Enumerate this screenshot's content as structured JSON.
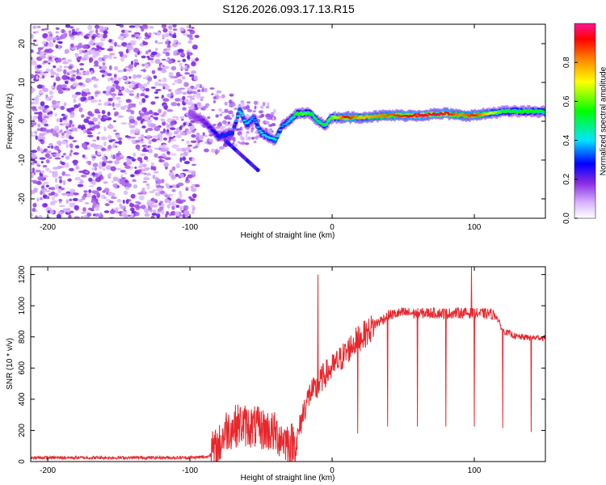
{
  "title": "S126.2026.093.17.13.R15",
  "colors": {
    "snr_line": "#e8262b",
    "axis": "#000000",
    "background": "#ffffff"
  },
  "chart_data": [
    {
      "type": "heatmap",
      "name": "spectrogram",
      "xlabel": "Height of straight line (km)",
      "ylabel": "Frequency (Hz)",
      "xlim": [
        -212,
        150
      ],
      "ylim": [
        -25,
        25
      ],
      "xticks": [
        -200,
        -100,
        0,
        100
      ],
      "xtick_labels": [
        "-200",
        "-100",
        "0",
        "100"
      ],
      "yticks": [
        -20,
        -10,
        0,
        10,
        20
      ],
      "ytick_labels": [
        "-20",
        "-10",
        "0",
        "10",
        "20"
      ],
      "colorbar": {
        "label": "Normalized spectral amplitude",
        "range": [
          0,
          1
        ],
        "ticks": [
          0,
          0.2,
          0.4,
          0.6,
          0.8
        ],
        "tick_labels": [
          "0.0",
          "0.2",
          "0.4",
          "0.6",
          "0.8"
        ]
      },
      "ridge": {
        "x": [
          -100,
          -90,
          -80,
          -70,
          -65,
          -60,
          -55,
          -50,
          -45,
          -40,
          -35,
          -30,
          -25,
          -20,
          -15,
          -10,
          -5,
          0,
          10,
          20,
          40,
          60,
          80,
          90,
          100,
          120,
          150
        ],
        "freq_hz": [
          2,
          0,
          -4,
          -3,
          3,
          -1,
          1,
          -3,
          -4,
          -5,
          -1,
          0,
          2,
          2,
          2,
          0,
          -1,
          1,
          1,
          1,
          1.5,
          1.5,
          2,
          1.5,
          1.5,
          2.5,
          2.5
        ],
        "amplitude": [
          0.15,
          0.2,
          0.3,
          0.3,
          0.45,
          0.4,
          0.35,
          0.4,
          0.4,
          0.45,
          0.35,
          0.4,
          0.55,
          0.6,
          0.55,
          0.5,
          0.55,
          0.6,
          0.95,
          0.75,
          0.85,
          0.95,
          0.95,
          0.8,
          0.9,
          0.55,
          0.55
        ]
      },
      "noise_region_x": [
        -212,
        -95
      ]
    },
    {
      "type": "line",
      "name": "snr",
      "xlabel": "Height of straight line (km)",
      "ylabel": "SNR (10 * v/v)",
      "xlim": [
        -212,
        150
      ],
      "ylim": [
        0,
        1250
      ],
      "xticks": [
        -200,
        -100,
        0,
        100
      ],
      "xtick_labels": [
        "-200",
        "-100",
        "0",
        "100"
      ],
      "yticks": [
        0,
        200,
        400,
        600,
        800,
        1000,
        1200
      ],
      "ytick_labels": [
        "0",
        "200",
        "400",
        "600",
        "800",
        "1000",
        "1200"
      ],
      "series": [
        {
          "name": "SNR",
          "x": [
            -212,
            -150,
            -100,
            -88,
            -80,
            -75,
            -70,
            -65,
            -60,
            -55,
            -50,
            -45,
            -40,
            -35,
            -30,
            -25,
            -22,
            -20,
            -18,
            -15,
            -12,
            -10,
            -8,
            -5,
            0,
            5,
            10,
            15,
            20,
            25,
            30,
            40,
            50,
            60,
            70,
            80,
            90,
            100,
            110,
            115,
            120,
            130,
            140,
            150
          ],
          "y": [
            25,
            25,
            25,
            30,
            90,
            200,
            220,
            240,
            230,
            220,
            210,
            200,
            180,
            150,
            120,
            120,
            250,
            330,
            380,
            450,
            450,
            480,
            520,
            560,
            600,
            650,
            700,
            760,
            800,
            830,
            880,
            940,
            955,
            950,
            955,
            950,
            955,
            950,
            950,
            940,
            840,
            800,
            795,
            795
          ],
          "spikes": [
            {
              "x": -10,
              "y": 1200
            },
            {
              "x": 18,
              "y": 180
            },
            {
              "x": 39,
              "y": 225
            },
            {
              "x": 60,
              "y": 225
            },
            {
              "x": 80,
              "y": 225
            },
            {
              "x": 98,
              "y": 1250
            },
            {
              "x": 100,
              "y": 225
            },
            {
              "x": 120,
              "y": 215
            },
            {
              "x": 140,
              "y": 190
            }
          ]
        }
      ]
    }
  ]
}
